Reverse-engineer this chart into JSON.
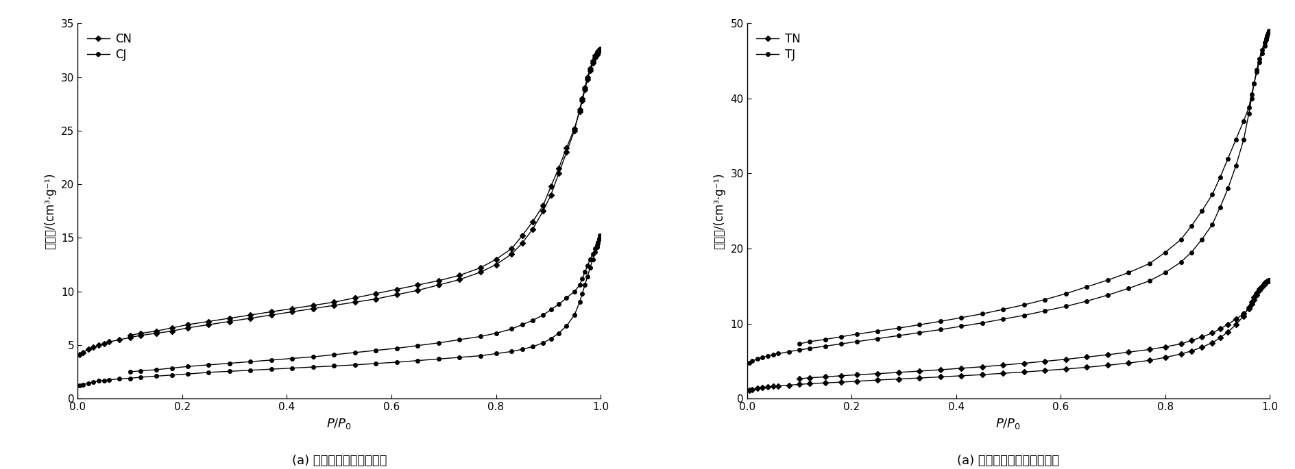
{
  "left_chart": {
    "title": "(a) 传统方式制备的生物炭",
    "ylabel": "吸附量/(cm³·g⁻¹)",
    "xlabel_p": "P",
    "xlabel_p0": "P",
    "ylim": [
      0,
      35
    ],
    "yticks": [
      0,
      5,
      10,
      15,
      20,
      25,
      30,
      35
    ],
    "xlim": [
      0,
      1.0
    ],
    "xticks": [
      0,
      0.2,
      0.4,
      0.6,
      0.8,
      1.0
    ],
    "series": {
      "CN": {
        "adsorption_x": [
          0.004,
          0.01,
          0.02,
          0.03,
          0.04,
          0.05,
          0.06,
          0.08,
          0.1,
          0.12,
          0.15,
          0.18,
          0.21,
          0.25,
          0.29,
          0.33,
          0.37,
          0.41,
          0.45,
          0.49,
          0.53,
          0.57,
          0.61,
          0.65,
          0.69,
          0.73,
          0.77,
          0.8,
          0.83,
          0.85,
          0.87,
          0.89,
          0.905,
          0.92,
          0.935,
          0.95,
          0.96,
          0.965,
          0.97,
          0.975,
          0.98,
          0.985,
          0.99,
          0.993,
          0.995,
          0.997,
          0.999
        ],
        "adsorption_y": [
          4.1,
          4.3,
          4.6,
          4.8,
          5.0,
          5.1,
          5.3,
          5.5,
          5.7,
          5.9,
          6.1,
          6.3,
          6.6,
          6.9,
          7.2,
          7.5,
          7.8,
          8.1,
          8.4,
          8.7,
          9.0,
          9.3,
          9.7,
          10.1,
          10.6,
          11.1,
          11.8,
          12.5,
          13.5,
          14.5,
          15.8,
          17.5,
          19.0,
          21.0,
          23.0,
          25.0,
          27.0,
          28.0,
          29.0,
          30.0,
          30.8,
          31.5,
          32.0,
          32.2,
          32.4,
          32.5,
          32.6
        ],
        "desorption_x": [
          0.999,
          0.997,
          0.995,
          0.993,
          0.99,
          0.985,
          0.98,
          0.975,
          0.97,
          0.965,
          0.96,
          0.95,
          0.935,
          0.92,
          0.905,
          0.89,
          0.87,
          0.85,
          0.83,
          0.8,
          0.77,
          0.73,
          0.69,
          0.65,
          0.61,
          0.57,
          0.53,
          0.49,
          0.45,
          0.41,
          0.37,
          0.33,
          0.29,
          0.25,
          0.21,
          0.18,
          0.15,
          0.12,
          0.1
        ],
        "desorption_y": [
          32.6,
          32.5,
          32.3,
          32.1,
          31.8,
          31.3,
          30.6,
          29.8,
          28.8,
          27.8,
          26.8,
          25.2,
          23.4,
          21.5,
          19.8,
          18.0,
          16.5,
          15.2,
          14.0,
          13.0,
          12.2,
          11.5,
          11.0,
          10.6,
          10.2,
          9.8,
          9.4,
          9.0,
          8.7,
          8.4,
          8.1,
          7.8,
          7.5,
          7.2,
          6.9,
          6.6,
          6.3,
          6.1,
          5.9
        ],
        "marker": "D",
        "color": "#000000"
      },
      "CJ": {
        "adsorption_x": [
          0.004,
          0.01,
          0.02,
          0.03,
          0.04,
          0.05,
          0.06,
          0.08,
          0.1,
          0.12,
          0.15,
          0.18,
          0.21,
          0.25,
          0.29,
          0.33,
          0.37,
          0.41,
          0.45,
          0.49,
          0.53,
          0.57,
          0.61,
          0.65,
          0.69,
          0.73,
          0.77,
          0.8,
          0.83,
          0.85,
          0.87,
          0.89,
          0.905,
          0.92,
          0.935,
          0.95,
          0.96,
          0.965,
          0.97,
          0.975,
          0.98,
          0.985,
          0.99,
          0.993,
          0.995,
          0.997,
          0.999
        ],
        "adsorption_y": [
          1.2,
          1.3,
          1.45,
          1.55,
          1.65,
          1.7,
          1.75,
          1.85,
          1.9,
          2.0,
          2.1,
          2.2,
          2.3,
          2.45,
          2.55,
          2.65,
          2.75,
          2.85,
          2.95,
          3.05,
          3.15,
          3.28,
          3.4,
          3.55,
          3.7,
          3.85,
          4.0,
          4.2,
          4.4,
          4.6,
          4.85,
          5.2,
          5.6,
          6.1,
          6.8,
          7.8,
          9.0,
          9.8,
          10.6,
          11.4,
          12.2,
          13.0,
          13.7,
          14.1,
          14.5,
          14.9,
          15.2
        ],
        "desorption_x": [
          0.999,
          0.997,
          0.995,
          0.993,
          0.99,
          0.985,
          0.98,
          0.975,
          0.97,
          0.965,
          0.96,
          0.95,
          0.935,
          0.92,
          0.905,
          0.89,
          0.87,
          0.85,
          0.83,
          0.8,
          0.77,
          0.73,
          0.69,
          0.65,
          0.61,
          0.57,
          0.53,
          0.49,
          0.45,
          0.41,
          0.37,
          0.33,
          0.29,
          0.25,
          0.21,
          0.18,
          0.15,
          0.12,
          0.1
        ],
        "desorption_y": [
          15.2,
          14.9,
          14.6,
          14.3,
          14.0,
          13.5,
          13.0,
          12.4,
          11.8,
          11.2,
          10.6,
          10.0,
          9.4,
          8.8,
          8.3,
          7.8,
          7.3,
          6.9,
          6.5,
          6.1,
          5.8,
          5.5,
          5.2,
          4.95,
          4.7,
          4.5,
          4.3,
          4.1,
          3.9,
          3.75,
          3.6,
          3.45,
          3.3,
          3.15,
          3.0,
          2.85,
          2.7,
          2.6,
          2.5
        ],
        "marker": "o",
        "color": "#000000"
      }
    }
  },
  "right_chart": {
    "title": "(a) 太阳能热解制备的生物炭",
    "ylabel": "吸附量/(cm³·g⁻¹)",
    "xlabel_p": "P",
    "xlabel_p0": "P",
    "ylim": [
      0,
      50
    ],
    "yticks": [
      0,
      10,
      20,
      30,
      40,
      50
    ],
    "xlim": [
      0,
      1.0
    ],
    "xticks": [
      0,
      0.2,
      0.4,
      0.6,
      0.8,
      1.0
    ],
    "series": {
      "TN": {
        "adsorption_x": [
          0.004,
          0.01,
          0.02,
          0.03,
          0.04,
          0.05,
          0.06,
          0.08,
          0.1,
          0.12,
          0.15,
          0.18,
          0.21,
          0.25,
          0.29,
          0.33,
          0.37,
          0.41,
          0.45,
          0.49,
          0.53,
          0.57,
          0.61,
          0.65,
          0.69,
          0.73,
          0.77,
          0.8,
          0.83,
          0.85,
          0.87,
          0.89,
          0.905,
          0.92,
          0.935,
          0.95,
          0.96,
          0.965,
          0.97,
          0.975,
          0.98,
          0.985,
          0.99,
          0.993,
          0.995,
          0.997,
          0.999
        ],
        "adsorption_y": [
          1.1,
          1.2,
          1.35,
          1.45,
          1.55,
          1.62,
          1.68,
          1.8,
          1.9,
          2.0,
          2.1,
          2.2,
          2.32,
          2.48,
          2.62,
          2.75,
          2.9,
          3.05,
          3.2,
          3.38,
          3.55,
          3.75,
          3.95,
          4.18,
          4.45,
          4.75,
          5.1,
          5.5,
          5.95,
          6.35,
          6.85,
          7.45,
          8.1,
          8.9,
          9.85,
          11.0,
          12.2,
          12.9,
          13.5,
          14.1,
          14.6,
          15.0,
          15.4,
          15.55,
          15.65,
          15.7,
          15.75
        ],
        "desorption_x": [
          0.999,
          0.997,
          0.995,
          0.993,
          0.99,
          0.985,
          0.98,
          0.975,
          0.97,
          0.965,
          0.96,
          0.95,
          0.935,
          0.92,
          0.905,
          0.89,
          0.87,
          0.85,
          0.83,
          0.8,
          0.77,
          0.73,
          0.69,
          0.65,
          0.61,
          0.57,
          0.53,
          0.49,
          0.45,
          0.41,
          0.37,
          0.33,
          0.29,
          0.25,
          0.21,
          0.18,
          0.15,
          0.12,
          0.1
        ],
        "desorption_y": [
          15.75,
          15.7,
          15.65,
          15.55,
          15.3,
          14.9,
          14.4,
          13.8,
          13.2,
          12.6,
          12.0,
          11.3,
          10.6,
          9.9,
          9.3,
          8.75,
          8.2,
          7.75,
          7.3,
          6.9,
          6.55,
          6.2,
          5.85,
          5.55,
          5.25,
          4.98,
          4.72,
          4.48,
          4.25,
          4.05,
          3.85,
          3.67,
          3.5,
          3.33,
          3.18,
          3.05,
          2.9,
          2.78,
          2.65
        ],
        "marker": "D",
        "color": "#000000"
      },
      "TJ": {
        "adsorption_x": [
          0.004,
          0.01,
          0.02,
          0.03,
          0.04,
          0.05,
          0.06,
          0.08,
          0.1,
          0.12,
          0.15,
          0.18,
          0.21,
          0.25,
          0.29,
          0.33,
          0.37,
          0.41,
          0.45,
          0.49,
          0.53,
          0.57,
          0.61,
          0.65,
          0.69,
          0.73,
          0.77,
          0.8,
          0.83,
          0.85,
          0.87,
          0.89,
          0.905,
          0.92,
          0.935,
          0.95,
          0.96,
          0.965,
          0.97,
          0.975,
          0.98,
          0.985,
          0.99,
          0.993,
          0.995,
          0.997,
          0.999
        ],
        "adsorption_y": [
          4.8,
          5.0,
          5.3,
          5.5,
          5.7,
          5.85,
          6.0,
          6.25,
          6.5,
          6.7,
          7.0,
          7.3,
          7.6,
          8.0,
          8.4,
          8.8,
          9.2,
          9.65,
          10.1,
          10.6,
          11.1,
          11.7,
          12.3,
          13.0,
          13.8,
          14.7,
          15.7,
          16.8,
          18.2,
          19.5,
          21.2,
          23.2,
          25.5,
          28.0,
          31.0,
          34.5,
          38.0,
          40.0,
          42.0,
          43.8,
          45.3,
          46.5,
          47.5,
          48.0,
          48.4,
          48.7,
          49.0
        ],
        "desorption_x": [
          0.999,
          0.997,
          0.995,
          0.993,
          0.99,
          0.985,
          0.98,
          0.975,
          0.97,
          0.965,
          0.96,
          0.95,
          0.935,
          0.92,
          0.905,
          0.89,
          0.87,
          0.85,
          0.83,
          0.8,
          0.77,
          0.73,
          0.69,
          0.65,
          0.61,
          0.57,
          0.53,
          0.49,
          0.45,
          0.41,
          0.37,
          0.33,
          0.29,
          0.25,
          0.21,
          0.18,
          0.15,
          0.12,
          0.1
        ],
        "desorption_y": [
          49.0,
          48.7,
          48.3,
          47.8,
          47.0,
          46.0,
          44.8,
          43.5,
          42.0,
          40.5,
          38.8,
          37.0,
          34.5,
          32.0,
          29.5,
          27.2,
          25.0,
          23.0,
          21.2,
          19.5,
          18.0,
          16.8,
          15.8,
          14.9,
          14.0,
          13.2,
          12.5,
          11.9,
          11.3,
          10.8,
          10.3,
          9.85,
          9.4,
          9.0,
          8.6,
          8.25,
          7.9,
          7.6,
          7.3
        ],
        "marker": "o",
        "color": "#000000"
      }
    }
  },
  "figure": {
    "bg_color": "#ffffff",
    "line_color": "#000000",
    "marker_size": 4,
    "linewidth": 1.0,
    "font_size": 12,
    "title_font_size": 13,
    "label_font_size": 12,
    "tick_font_size": 11
  }
}
